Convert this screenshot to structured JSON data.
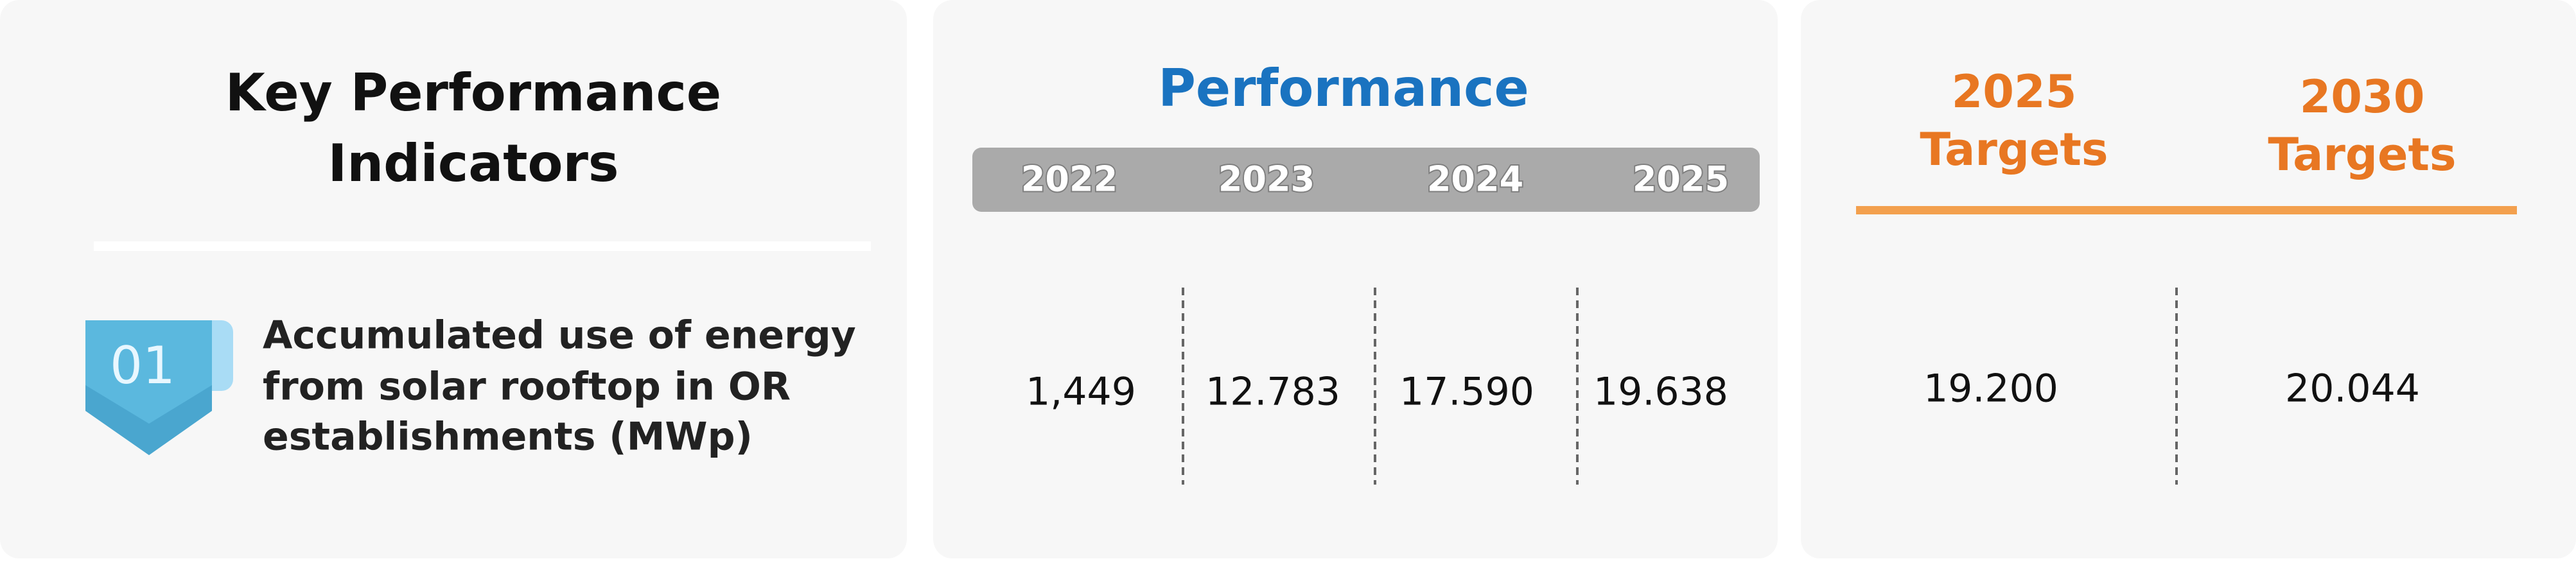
{
  "kpi": {
    "title_lines": [
      "Key  Performance",
      "Indicators"
    ],
    "badge": "01",
    "indicator_lines": [
      "Accumulated use of energy",
      "from solar rooftop in OR",
      "establishments (MWp)"
    ]
  },
  "performance": {
    "title": "Performance",
    "years": [
      "2022",
      "2023",
      "2024",
      "2025"
    ],
    "values": [
      "1,449",
      "12.783",
      "17.590",
      "19.638"
    ]
  },
  "targets": [
    {
      "year": "2025",
      "label": "Targets",
      "value": "19.200"
    },
    {
      "year": "2030",
      "label": "Targets",
      "value": "20.044"
    }
  ]
}
